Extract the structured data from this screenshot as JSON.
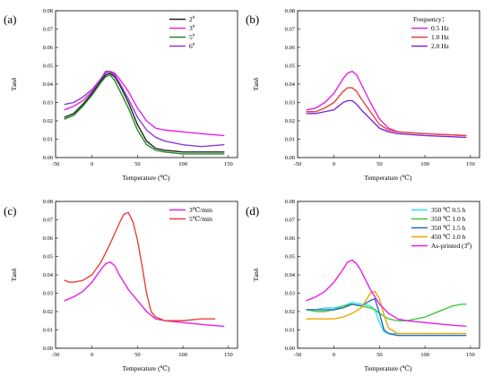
{
  "chart_data": [
    {
      "type": "line",
      "panel_label": "(a)",
      "xlabel": "Temperature (℃)",
      "ylabel": "Tanδ",
      "xlim": [
        -40,
        160
      ],
      "ylim": [
        0,
        0.08
      ],
      "xticks": [
        -50,
        0,
        50,
        100,
        150
      ],
      "xtick_labels": [
        "-50",
        "0",
        "50",
        "100",
        "150"
      ],
      "yticks": [
        0,
        0.01,
        0.02,
        0.03,
        0.04,
        0.05,
        0.06,
        0.07,
        0.08
      ],
      "ytick_labels": [
        "0.00",
        "0.01",
        "0.02",
        "0.03",
        "0.04",
        "0.05",
        "0.06",
        "0.07",
        "0.08"
      ],
      "legend_title": "",
      "legend_position": "top-right",
      "series": [
        {
          "name": "2#",
          "name_base": "2",
          "name_sup": "#",
          "color": "#1f1f1f",
          "x": [
            -30,
            -20,
            -10,
            0,
            10,
            15,
            20,
            25,
            30,
            40,
            50,
            60,
            70,
            80,
            100,
            120,
            145
          ],
          "y": [
            0.022,
            0.024,
            0.029,
            0.035,
            0.042,
            0.045,
            0.046,
            0.044,
            0.04,
            0.03,
            0.018,
            0.009,
            0.005,
            0.004,
            0.003,
            0.003,
            0.003
          ]
        },
        {
          "name": "3#",
          "name_base": "3",
          "name_sup": "#",
          "color": "#e81fe8",
          "x": [
            -30,
            -20,
            -10,
            0,
            10,
            15,
            20,
            25,
            30,
            40,
            50,
            60,
            70,
            80,
            100,
            120,
            145
          ],
          "y": [
            0.026,
            0.028,
            0.031,
            0.036,
            0.043,
            0.046,
            0.047,
            0.046,
            0.043,
            0.036,
            0.027,
            0.02,
            0.016,
            0.015,
            0.014,
            0.013,
            0.012
          ]
        },
        {
          "name": "5#",
          "name_base": "5",
          "name_sup": "#",
          "color": "#1f8a1f",
          "x": [
            -30,
            -20,
            -10,
            0,
            10,
            15,
            20,
            25,
            30,
            40,
            50,
            60,
            70,
            80,
            100,
            120,
            145
          ],
          "y": [
            0.021,
            0.023,
            0.028,
            0.034,
            0.041,
            0.044,
            0.045,
            0.042,
            0.037,
            0.027,
            0.015,
            0.007,
            0.004,
            0.003,
            0.002,
            0.002,
            0.002
          ]
        },
        {
          "name": "6#",
          "name_base": "6",
          "name_sup": "#",
          "color": "#8b3cd6",
          "x": [
            -30,
            -20,
            -10,
            0,
            10,
            15,
            20,
            25,
            30,
            40,
            50,
            60,
            70,
            80,
            100,
            120,
            145
          ],
          "y": [
            0.029,
            0.03,
            0.033,
            0.037,
            0.043,
            0.047,
            0.047,
            0.045,
            0.041,
            0.032,
            0.022,
            0.015,
            0.011,
            0.009,
            0.007,
            0.006,
            0.007
          ]
        }
      ]
    },
    {
      "type": "line",
      "panel_label": "(b)",
      "xlabel": "Temperature (℃)",
      "ylabel": "Tanδ",
      "xlim": [
        -40,
        160
      ],
      "ylim": [
        0,
        0.08
      ],
      "xticks": [
        -50,
        0,
        50,
        100,
        150
      ],
      "xtick_labels": [
        "-50",
        "0",
        "50",
        "100",
        "150"
      ],
      "yticks": [
        0,
        0.01,
        0.02,
        0.03,
        0.04,
        0.05,
        0.06,
        0.07,
        0.08
      ],
      "ytick_labels": [
        "0.00",
        "0.01",
        "0.02",
        "0.03",
        "0.04",
        "0.05",
        "0.06",
        "0.07",
        "0.08"
      ],
      "legend_title": "Frequency：",
      "legend_position": "top-right",
      "series": [
        {
          "name": "0.5 Hz",
          "color": "#e81fe8",
          "x": [
            -30,
            -20,
            -10,
            0,
            5,
            10,
            15,
            20,
            25,
            30,
            40,
            50,
            60,
            70,
            100,
            145
          ],
          "y": [
            0.026,
            0.027,
            0.03,
            0.035,
            0.039,
            0.043,
            0.046,
            0.047,
            0.045,
            0.04,
            0.03,
            0.021,
            0.016,
            0.014,
            0.013,
            0.012
          ]
        },
        {
          "name": "1.0 Hz",
          "color": "#e8413a",
          "x": [
            -30,
            -20,
            -10,
            0,
            5,
            10,
            15,
            20,
            25,
            30,
            40,
            50,
            60,
            70,
            100,
            145
          ],
          "y": [
            0.025,
            0.025,
            0.027,
            0.03,
            0.033,
            0.036,
            0.038,
            0.038,
            0.036,
            0.032,
            0.025,
            0.018,
            0.015,
            0.014,
            0.013,
            0.012
          ]
        },
        {
          "name": "2.0 Hz",
          "color": "#7a2bd0",
          "x": [
            -30,
            -20,
            -10,
            0,
            5,
            10,
            15,
            20,
            25,
            30,
            40,
            50,
            60,
            70,
            100,
            145
          ],
          "y": [
            0.024,
            0.024,
            0.025,
            0.026,
            0.028,
            0.03,
            0.031,
            0.031,
            0.029,
            0.026,
            0.021,
            0.016,
            0.014,
            0.013,
            0.012,
            0.011
          ]
        }
      ]
    },
    {
      "type": "line",
      "panel_label": "(c)",
      "xlabel": "Temperature (℃)",
      "ylabel": "Tanδ",
      "xlim": [
        -40,
        160
      ],
      "ylim": [
        0,
        0.08
      ],
      "xticks": [
        -50,
        0,
        50,
        100,
        150
      ],
      "xtick_labels": [
        "-50",
        "0",
        "50",
        "100",
        "150"
      ],
      "yticks": [
        0,
        0.01,
        0.02,
        0.03,
        0.04,
        0.05,
        0.06,
        0.07,
        0.08
      ],
      "ytick_labels": [
        "0.00",
        "0.01",
        "0.02",
        "0.03",
        "0.04",
        "0.05",
        "0.06",
        "0.07",
        "0.08"
      ],
      "legend_title": "",
      "legend_position": "top-right",
      "series": [
        {
          "name": "3℃/min",
          "color": "#e81fe8",
          "x": [
            -30,
            -20,
            -10,
            0,
            10,
            15,
            20,
            25,
            30,
            40,
            50,
            60,
            70,
            80,
            100,
            120,
            145
          ],
          "y": [
            0.026,
            0.028,
            0.031,
            0.036,
            0.043,
            0.046,
            0.047,
            0.045,
            0.04,
            0.032,
            0.026,
            0.02,
            0.016,
            0.015,
            0.014,
            0.013,
            0.012
          ]
        },
        {
          "name": "5℃/min",
          "color": "#e8413a",
          "x": [
            -30,
            -25,
            -20,
            -10,
            0,
            10,
            20,
            30,
            35,
            40,
            45,
            50,
            55,
            60,
            65,
            70,
            80,
            100,
            120,
            125,
            130,
            135
          ],
          "y": [
            0.037,
            0.036,
            0.036,
            0.037,
            0.04,
            0.047,
            0.057,
            0.068,
            0.073,
            0.074,
            0.069,
            0.059,
            0.045,
            0.03,
            0.02,
            0.017,
            0.015,
            0.015,
            0.016,
            0.016,
            0.016,
            0.016
          ]
        }
      ]
    },
    {
      "type": "line",
      "panel_label": "(d)",
      "xlabel": "Temperature (℃)",
      "ylabel": "Tanδ",
      "xlim": [
        -40,
        160
      ],
      "ylim": [
        0,
        0.08
      ],
      "xticks": [
        -50,
        0,
        50,
        100,
        150
      ],
      "xtick_labels": [
        "-50",
        "0",
        "50",
        "100",
        "150"
      ],
      "yticks": [
        0,
        0.01,
        0.02,
        0.03,
        0.04,
        0.05,
        0.06,
        0.07,
        0.08
      ],
      "ytick_labels": [
        "0.00",
        "0.01",
        "0.02",
        "0.03",
        "0.04",
        "0.05",
        "0.06",
        "0.07",
        "0.08"
      ],
      "legend_title": "",
      "legend_position": "top-right",
      "series": [
        {
          "name": "350 ℃ 0.5 h",
          "color": "#2ee6e6",
          "x": [
            -30,
            -20,
            -10,
            0,
            10,
            20,
            30,
            40,
            45,
            50,
            55,
            60,
            70,
            80,
            100,
            120,
            145
          ],
          "y": [
            0.021,
            0.021,
            0.022,
            0.022,
            0.023,
            0.025,
            0.024,
            0.023,
            0.021,
            0.014,
            0.009,
            0.008,
            0.008,
            0.008,
            0.008,
            0.008,
            0.008
          ]
        },
        {
          "name": "350 ℃ 1.0 h",
          "color": "#3bc93b",
          "x": [
            -30,
            -20,
            -10,
            0,
            10,
            20,
            30,
            40,
            45,
            50,
            60,
            70,
            80,
            90,
            100,
            110,
            120,
            130,
            140,
            145
          ],
          "y": [
            0.021,
            0.02,
            0.02,
            0.021,
            0.023,
            0.024,
            0.023,
            0.022,
            0.021,
            0.019,
            0.016,
            0.015,
            0.015,
            0.016,
            0.017,
            0.019,
            0.021,
            0.023,
            0.024,
            0.024
          ]
        },
        {
          "name": "350 ℃ 1.5 h",
          "color": "#2a6ab8",
          "x": [
            -30,
            -20,
            -10,
            0,
            10,
            20,
            30,
            40,
            45,
            50,
            55,
            60,
            70,
            80,
            100,
            120,
            145
          ],
          "y": [
            0.021,
            0.021,
            0.021,
            0.021,
            0.022,
            0.024,
            0.023,
            0.026,
            0.027,
            0.019,
            0.01,
            0.008,
            0.007,
            0.007,
            0.007,
            0.007,
            0.007
          ]
        },
        {
          "name": "450 ℃ 1.0 h",
          "color": "#f0a500",
          "x": [
            -30,
            -20,
            -10,
            0,
            10,
            20,
            30,
            35,
            40,
            45,
            50,
            55,
            60,
            70,
            80,
            100,
            120,
            145
          ],
          "y": [
            0.016,
            0.016,
            0.016,
            0.016,
            0.017,
            0.019,
            0.022,
            0.026,
            0.03,
            0.031,
            0.027,
            0.018,
            0.011,
            0.008,
            0.008,
            0.008,
            0.008,
            0.008
          ]
        },
        {
          "name": "As-printed (3#)",
          "name_base": "As-printed (3",
          "name_sup": "#",
          "name_tail": ")",
          "color": "#e81fe8",
          "x": [
            -30,
            -20,
            -10,
            0,
            10,
            15,
            20,
            25,
            30,
            40,
            50,
            60,
            70,
            80,
            100,
            120,
            145
          ],
          "y": [
            0.026,
            0.028,
            0.031,
            0.036,
            0.043,
            0.047,
            0.048,
            0.046,
            0.042,
            0.032,
            0.024,
            0.019,
            0.016,
            0.015,
            0.014,
            0.013,
            0.012
          ]
        }
      ]
    }
  ]
}
